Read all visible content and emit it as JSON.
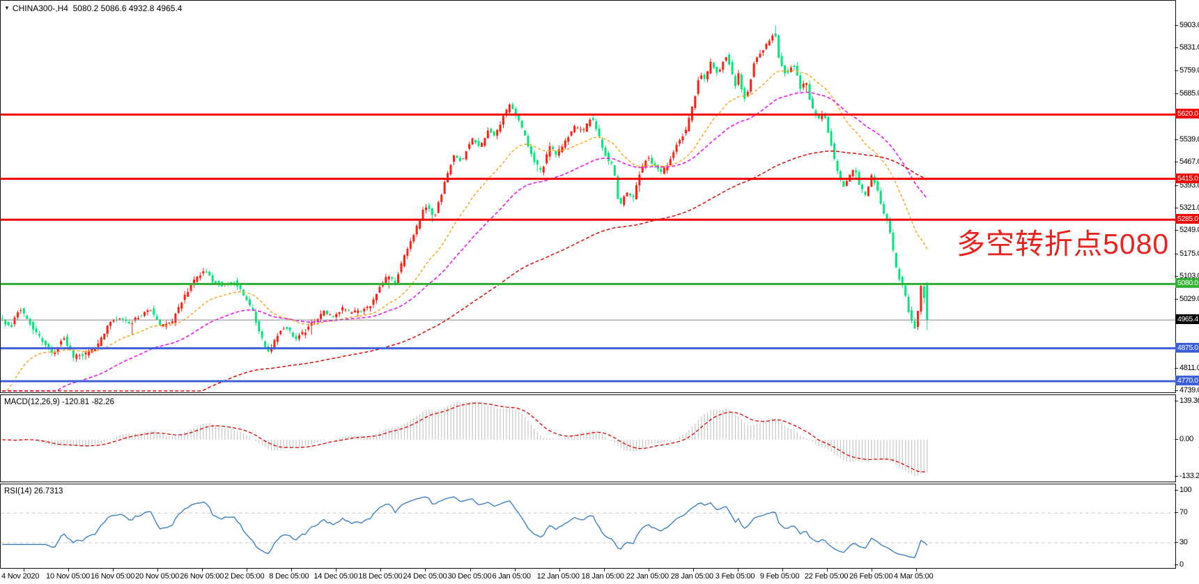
{
  "header": {
    "symbol_period": "CHINA300-,H4",
    "ohlc_text": "5080.2 5086.6 4932.8 4965.4",
    "dropdown_icon": "triangle-down-icon"
  },
  "annotation": {
    "text": "多空转折点5080",
    "color": "#E8231D"
  },
  "indicators": {
    "macd": {
      "label": "MACD(12,26,9) -120.81 -82.26",
      "value": -120.81,
      "signal_value": -82.26,
      "axis_values": [
        139.36,
        0.0,
        -133.2
      ],
      "axis_labels": [
        "139.36",
        "0.00",
        "-133.2"
      ],
      "histogram_color": "#C6C6C6",
      "signal_color": "#E00000"
    },
    "rsi": {
      "label": "RSI(14) 26.7313",
      "value": 26.7313,
      "axis_values": [
        100,
        70,
        30,
        0
      ],
      "axis_labels": [
        "100",
        "70",
        "30",
        "0"
      ],
      "dashed_levels": [
        70,
        30
      ],
      "line_color": "#4080C0",
      "dashed_color": "#C8C8C8"
    }
  },
  "chart_data": {
    "type": "candlestick",
    "symbol": "CHINA300-",
    "timeframe": "H4",
    "current_bar": {
      "open": 5080.2,
      "high": 5086.6,
      "low": 4932.8,
      "close": 4965.4
    },
    "bars": 300,
    "up_color": "#FF2012",
    "down_color": "#00E87A",
    "price_axis": {
      "top_value": 5903.0,
      "bottom_value": 4739.0,
      "ticks": [
        5903.0,
        5831.0,
        5759.0,
        5685.0,
        5539.0,
        5467.0,
        5393.0,
        5321.0,
        5249.0,
        5175.0,
        5103.0,
        5029.0,
        4811.0,
        4739.0
      ]
    },
    "time_axis": [
      "4 Nov 2020",
      "10 Nov 05:00",
      "16 Nov 05:00",
      "20 Nov 05:00",
      "26 Nov 05:00",
      "2 Dec 05:00",
      "8 Dec 05:00",
      "14 Dec 05:00",
      "18 Dec 05:00",
      "24 Dec 05:00",
      "30 Dec 05:00",
      "6 Jan 05:00",
      "12 Jan 05:00",
      "18 Jan 05:00",
      "22 Jan 05:00",
      "28 Jan 05:00",
      "3 Feb 05:00",
      "9 Feb 05:00",
      "22 Feb 05:00",
      "26 Feb 05:00",
      "4 Mar 05:00"
    ],
    "levels": [
      {
        "value": 5620.0,
        "label": "5620.0",
        "color": "#F00404"
      },
      {
        "value": 5415.0,
        "label": "5415.0",
        "color": "#F00404"
      },
      {
        "value": 5285.0,
        "label": "5285.0",
        "color": "#F00404"
      },
      {
        "value": 5080.0,
        "label": "5080.0",
        "color": "#32B232"
      },
      {
        "value": 4875.0,
        "label": "4875.0",
        "color": "#3D5FD8"
      },
      {
        "value": 4770.0,
        "label": "4770.0",
        "color": "#3D5FD8"
      }
    ],
    "current_price": {
      "value": 4965.4,
      "label": "4965.4",
      "line_color": "#888888",
      "badge_color": "#000000"
    },
    "moving_averages": [
      {
        "name": "ma-fast",
        "color": "#FFA519"
      },
      {
        "name": "ma-mid",
        "color": "#EE22EE"
      },
      {
        "name": "ma-slow",
        "color": "#DD0A0A"
      }
    ],
    "price_path_anchors": [
      [
        0,
        4975
      ],
      [
        16,
        4938
      ],
      [
        30,
        5005
      ],
      [
        46,
        4948
      ],
      [
        62,
        4898
      ],
      [
        78,
        4856
      ],
      [
        92,
        4915
      ],
      [
        106,
        4846
      ],
      [
        124,
        4858
      ],
      [
        140,
        4876
      ],
      [
        156,
        4948
      ],
      [
        172,
        4975
      ],
      [
        188,
        4955
      ],
      [
        202,
        4978
      ],
      [
        216,
        5002
      ],
      [
        232,
        4945
      ],
      [
        248,
        4958
      ],
      [
        265,
        5040
      ],
      [
        282,
        5098
      ],
      [
        295,
        5122
      ],
      [
        308,
        5086
      ],
      [
        322,
        5076
      ],
      [
        338,
        5086
      ],
      [
        352,
        5040
      ],
      [
        364,
        4992
      ],
      [
        376,
        4908
      ],
      [
        388,
        4858
      ],
      [
        400,
        4922
      ],
      [
        412,
        4946
      ],
      [
        424,
        4906
      ],
      [
        438,
        4926
      ],
      [
        452,
        4962
      ],
      [
        466,
        4992
      ],
      [
        478,
        4972
      ],
      [
        492,
        5002
      ],
      [
        506,
        4986
      ],
      [
        520,
        4998
      ],
      [
        534,
        5015
      ],
      [
        546,
        5072
      ],
      [
        558,
        5106
      ],
      [
        568,
        5082
      ],
      [
        582,
        5172
      ],
      [
        598,
        5252
      ],
      [
        612,
        5332
      ],
      [
        624,
        5292
      ],
      [
        638,
        5392
      ],
      [
        652,
        5492
      ],
      [
        664,
        5472
      ],
      [
        678,
        5548
      ],
      [
        690,
        5512
      ],
      [
        702,
        5572
      ],
      [
        712,
        5552
      ],
      [
        722,
        5608
      ],
      [
        733,
        5652
      ],
      [
        745,
        5602
      ],
      [
        756,
        5542
      ],
      [
        768,
        5472
      ],
      [
        778,
        5436
      ],
      [
        790,
        5516
      ],
      [
        800,
        5492
      ],
      [
        814,
        5542
      ],
      [
        826,
        5582
      ],
      [
        838,
        5562
      ],
      [
        850,
        5616
      ],
      [
        862,
        5542
      ],
      [
        872,
        5482
      ],
      [
        882,
        5452
      ],
      [
        890,
        5322
      ],
      [
        900,
        5372
      ],
      [
        910,
        5352
      ],
      [
        920,
        5442
      ],
      [
        930,
        5482
      ],
      [
        940,
        5462
      ],
      [
        950,
        5432
      ],
      [
        962,
        5472
      ],
      [
        974,
        5532
      ],
      [
        986,
        5572
      ],
      [
        996,
        5652
      ],
      [
        1006,
        5756
      ],
      [
        1014,
        5732
      ],
      [
        1022,
        5792
      ],
      [
        1032,
        5742
      ],
      [
        1042,
        5816
      ],
      [
        1050,
        5772
      ],
      [
        1056,
        5706
      ],
      [
        1062,
        5756
      ],
      [
        1068,
        5662
      ],
      [
        1076,
        5702
      ],
      [
        1084,
        5792
      ],
      [
        1095,
        5822
      ],
      [
        1105,
        5856
      ],
      [
        1113,
        5888
      ],
      [
        1120,
        5792
      ],
      [
        1130,
        5746
      ],
      [
        1140,
        5782
      ],
      [
        1150,
        5706
      ],
      [
        1158,
        5726
      ],
      [
        1166,
        5646
      ],
      [
        1176,
        5602
      ],
      [
        1184,
        5626
      ],
      [
        1192,
        5546
      ],
      [
        1202,
        5446
      ],
      [
        1212,
        5386
      ],
      [
        1220,
        5426
      ],
      [
        1228,
        5446
      ],
      [
        1236,
        5386
      ],
      [
        1244,
        5362
      ],
      [
        1252,
        5422
      ],
      [
        1260,
        5386
      ],
      [
        1268,
        5306
      ],
      [
        1276,
        5282
      ],
      [
        1286,
        5142
      ],
      [
        1294,
        5086
      ],
      [
        1301,
        5042
      ],
      [
        1307,
        4978
      ],
      [
        1315,
        4938
      ],
      [
        1324,
        5082
      ],
      [
        1332,
        4965
      ]
    ]
  }
}
